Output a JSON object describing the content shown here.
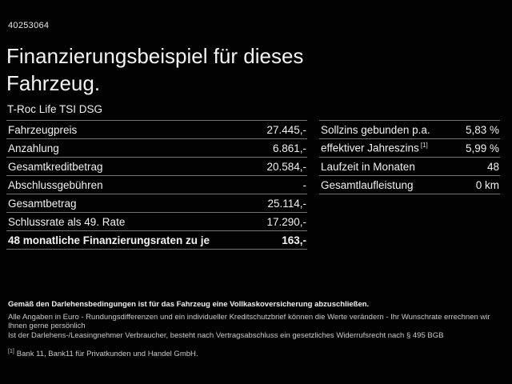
{
  "header": {
    "id_number": "40253064",
    "title": "Finanzierungsbeispiel für dieses Fahrzeug.",
    "model": "T-Roc Life TSI DSG"
  },
  "left_table": {
    "rows": [
      {
        "label": "Fahrzeugpreis",
        "value": "27.445,-"
      },
      {
        "label": "Anzahlung",
        "value": "6.861,-"
      },
      {
        "label": "Gesamtkreditbetrag",
        "value": "20.584,-"
      },
      {
        "label": "Abschlussgebühren",
        "value": "-"
      },
      {
        "label": "Gesamtbetrag",
        "value": "25.114,-"
      },
      {
        "label": "Schlussrate als 49. Rate",
        "value": "17.290,-"
      },
      {
        "label": "48 monatliche Finanzierungsraten zu je",
        "value": "163,-"
      }
    ]
  },
  "right_table": {
    "rows": [
      {
        "label": "Sollzins gebunden p.a.",
        "sup": "",
        "value": "5,83 %"
      },
      {
        "label": "effektiver Jahreszins",
        "sup": "[1]",
        "value": "5,99 %"
      },
      {
        "label": "Laufzeit in Monaten",
        "sup": "",
        "value": "48"
      },
      {
        "label": "Gesamtlaufleistung",
        "sup": "",
        "value": "0 km"
      }
    ]
  },
  "footer": {
    "bold_line": "Gemäß den Darlehensbedingungen ist für das Fahrzeug eine Vollkaskoversicherung abzuschließen.",
    "line2": "Alle Angaben in Euro - Rundungsdifferenzen und ein individueller Kreditschutzbrief können die Werte verändern - Ihr Wunschrate errechnen wir Ihnen gerne persönlich",
    "line3": "Ist der Darlehens-/Leasingnehmer Verbraucher, besteht nach Vertragsabschluss ein gesetzliches Widerrufsrecht nach § 495 BGB",
    "footnote_marker": "[1]",
    "footnote_text": "Bank 11, Bank11 für Privatkunden und Handel GmbH."
  },
  "colors": {
    "background": "#020202",
    "text": "#f2f2f2",
    "divider": "#747474"
  }
}
